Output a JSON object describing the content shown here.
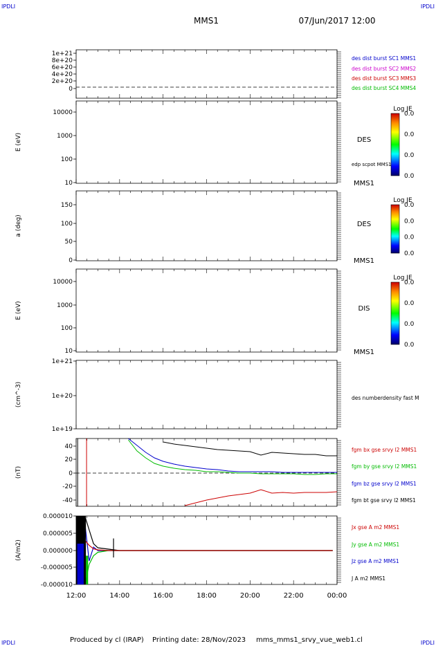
{
  "header": {
    "corner_left": "IPDLI",
    "corner_right": "IPDLI",
    "title": "MMS1",
    "datetime": "07/Jun/2017 12:00"
  },
  "footer": {
    "credit": "Produced by cl (IRAP)",
    "printing": "Printing date: 28/Nov/2023",
    "script": "mms_mms1_srvy_vue_web1.cl",
    "corner_left": "IPDLI",
    "corner_right": "IPDLI"
  },
  "colors": {
    "black": "#000000",
    "blue": "#0000cc",
    "magenta": "#cc00cc",
    "red": "#cc0000",
    "green": "#00bb00"
  },
  "time_axis": {
    "ticks": [
      "12:00",
      "14:00",
      "16:00",
      "18:00",
      "20:00",
      "22:00",
      "00:00"
    ],
    "range_hours": [
      12,
      24
    ]
  },
  "panels": [
    {
      "id": "p1",
      "y_ticks": [
        "1e+21",
        "8e+20",
        "6e+20",
        "4e+20",
        "2e+20",
        "0"
      ],
      "ylabel": "",
      "dashed_zero": true,
      "legend": [
        {
          "text": "des dist burst SC1 MMS1",
          "color": "blue"
        },
        {
          "text": "des dist burst SC2 MMS2",
          "color": "magenta"
        },
        {
          "text": "des dist burst SC3 MMS3",
          "color": "red"
        },
        {
          "text": "des dist burst SC4 MMS4",
          "color": "green"
        }
      ]
    },
    {
      "id": "p2",
      "y_ticks": [
        "10000",
        "1000",
        "100",
        "10"
      ],
      "ylabel": "E (eV)",
      "side_label": "DES",
      "side_note": "edp scpot MMS1",
      "footer_label": "MMS1",
      "colorbar": {
        "title": "Log JE",
        "values": [
          "0.0",
          "0.0",
          "0.0",
          "0.0"
        ]
      }
    },
    {
      "id": "p3",
      "y_ticks": [
        "150",
        "100",
        "50",
        "0"
      ],
      "ylabel": "a (deg)",
      "side_label": "DES",
      "footer_label": "MMS1",
      "colorbar": {
        "title": "Log JE",
        "values": [
          "0.0",
          "0.0",
          "0.0",
          "0.0"
        ]
      }
    },
    {
      "id": "p4",
      "y_ticks": [
        "10000",
        "1000",
        "100",
        "10"
      ],
      "ylabel": "E (eV)",
      "side_label": "DIS",
      "footer_label": "MMS1",
      "colorbar": {
        "title": "Log JE",
        "values": [
          "0.0",
          "0.0",
          "0.0",
          "0.0"
        ]
      }
    },
    {
      "id": "p5",
      "y_ticks": [
        "1e+21",
        "1e+20",
        "1e+19"
      ],
      "ylabel": "(cm^-3)",
      "legend": [
        {
          "text": "des numberdensity fast M",
          "color": "black"
        }
      ]
    },
    {
      "id": "p6",
      "y_ticks": [
        "40",
        "20",
        "0",
        "-20",
        "-40"
      ],
      "ylabel": "(nT)",
      "dashed_zero": true,
      "legend": [
        {
          "text": "fgm bx gse srvy l2 MMS1",
          "color": "red"
        },
        {
          "text": "fgm by gse srvy l2 MMS1",
          "color": "green"
        },
        {
          "text": "fgm bz gse srvy l2 MMS1",
          "color": "blue"
        },
        {
          "text": "fgm bt gse srvy l2 MMS1",
          "color": "black"
        }
      ]
    },
    {
      "id": "p7",
      "y_ticks": [
        "0.000010",
        "0.000005",
        "0.000000",
        "-0.000005",
        "-0.000010"
      ],
      "ylabel": "(A/m2)",
      "legend": [
        {
          "text": "Jx gse A m2 MMS1",
          "color": "red"
        },
        {
          "text": "Jy gse A m2 MMS1",
          "color": "green"
        },
        {
          "text": "Jz gse A m2 MMS1",
          "color": "blue"
        },
        {
          "text": "J A m2 MMS1",
          "color": "black"
        }
      ]
    }
  ],
  "chart_data": [
    {
      "type": "line",
      "title": "",
      "ylabel": "(nT)",
      "ylim": [
        -50,
        50
      ],
      "x_hours": [
        14.4,
        14.8,
        15.2,
        15.6,
        16.0,
        16.5,
        17.0,
        17.5,
        18.0,
        18.5,
        19.0,
        19.5,
        20.0,
        20.5,
        21.0,
        21.5,
        22.0,
        22.5,
        23.0,
        23.5,
        24.0
      ],
      "series": [
        {
          "name": "fgm bt gse srvy l2 MMS1",
          "color": "black",
          "x_start": 15.5,
          "values": [
            null,
            null,
            null,
            null,
            45,
            42,
            40,
            38,
            36,
            34,
            33,
            32,
            31,
            26,
            30,
            29,
            28,
            27,
            27,
            25,
            25
          ]
        },
        {
          "name": "fgm bz gse srvy l2 MMS1",
          "color": "blue",
          "values": [
            50,
            40,
            30,
            22,
            17,
            13,
            10,
            8,
            6,
            5,
            3,
            2,
            2,
            2,
            2,
            1,
            1,
            1,
            1,
            1,
            1
          ]
        },
        {
          "name": "fgm by gse srvy l2 MMS1",
          "color": "green",
          "values": [
            48,
            32,
            22,
            14,
            10,
            7,
            5,
            4,
            2,
            2,
            1,
            0,
            0,
            -1,
            -1,
            -1,
            -1,
            -2,
            -2,
            -1,
            -1
          ]
        },
        {
          "name": "fgm bx gse srvy l2 MMS1",
          "color": "red",
          "values": [
            null,
            null,
            null,
            null,
            null,
            null,
            -47,
            -43,
            -39,
            -36,
            -33,
            -31,
            -29,
            -24,
            -29,
            -28,
            -29,
            -28,
            -28,
            -28,
            -27
          ]
        }
      ]
    },
    {
      "type": "line",
      "title": "",
      "ylabel": "(A/m2)",
      "ylim": [
        -1e-05,
        1e-05
      ],
      "x_hours": [
        12.0,
        12.2,
        12.4,
        12.6,
        12.8,
        13.0,
        13.5,
        14.0,
        16.0,
        18.0,
        20.0,
        22.0,
        23.8
      ],
      "series": [
        {
          "name": "Jx gse A m2 MMS1",
          "color": "red",
          "values": [
            4e-06,
            -2e-06,
            3e-06,
            1.5e-06,
            5e-07,
            2e-07,
            0,
            0,
            0,
            0,
            0,
            0,
            0
          ]
        },
        {
          "name": "Jy gse A m2 MMS1",
          "color": "green",
          "values": [
            -8e-06,
            -6e-06,
            -1e-05,
            -4e-06,
            -1.5e-06,
            -5e-07,
            0,
            0,
            0,
            0,
            0,
            0,
            0
          ]
        },
        {
          "name": "Jz gse A m2 MMS1",
          "color": "blue",
          "values": [
            1e-05,
            -1e-05,
            8e-06,
            -3e-06,
            1e-06,
            0,
            0,
            0,
            0,
            0,
            0,
            0,
            0
          ]
        },
        {
          "name": "J A m2 MMS1",
          "color": "black",
          "values": [
            1e-05,
            1e-05,
            1e-05,
            6e-06,
            2e-06,
            8e-07,
            4e-07,
            0,
            0,
            0,
            0,
            0,
            0
          ]
        }
      ]
    }
  ]
}
